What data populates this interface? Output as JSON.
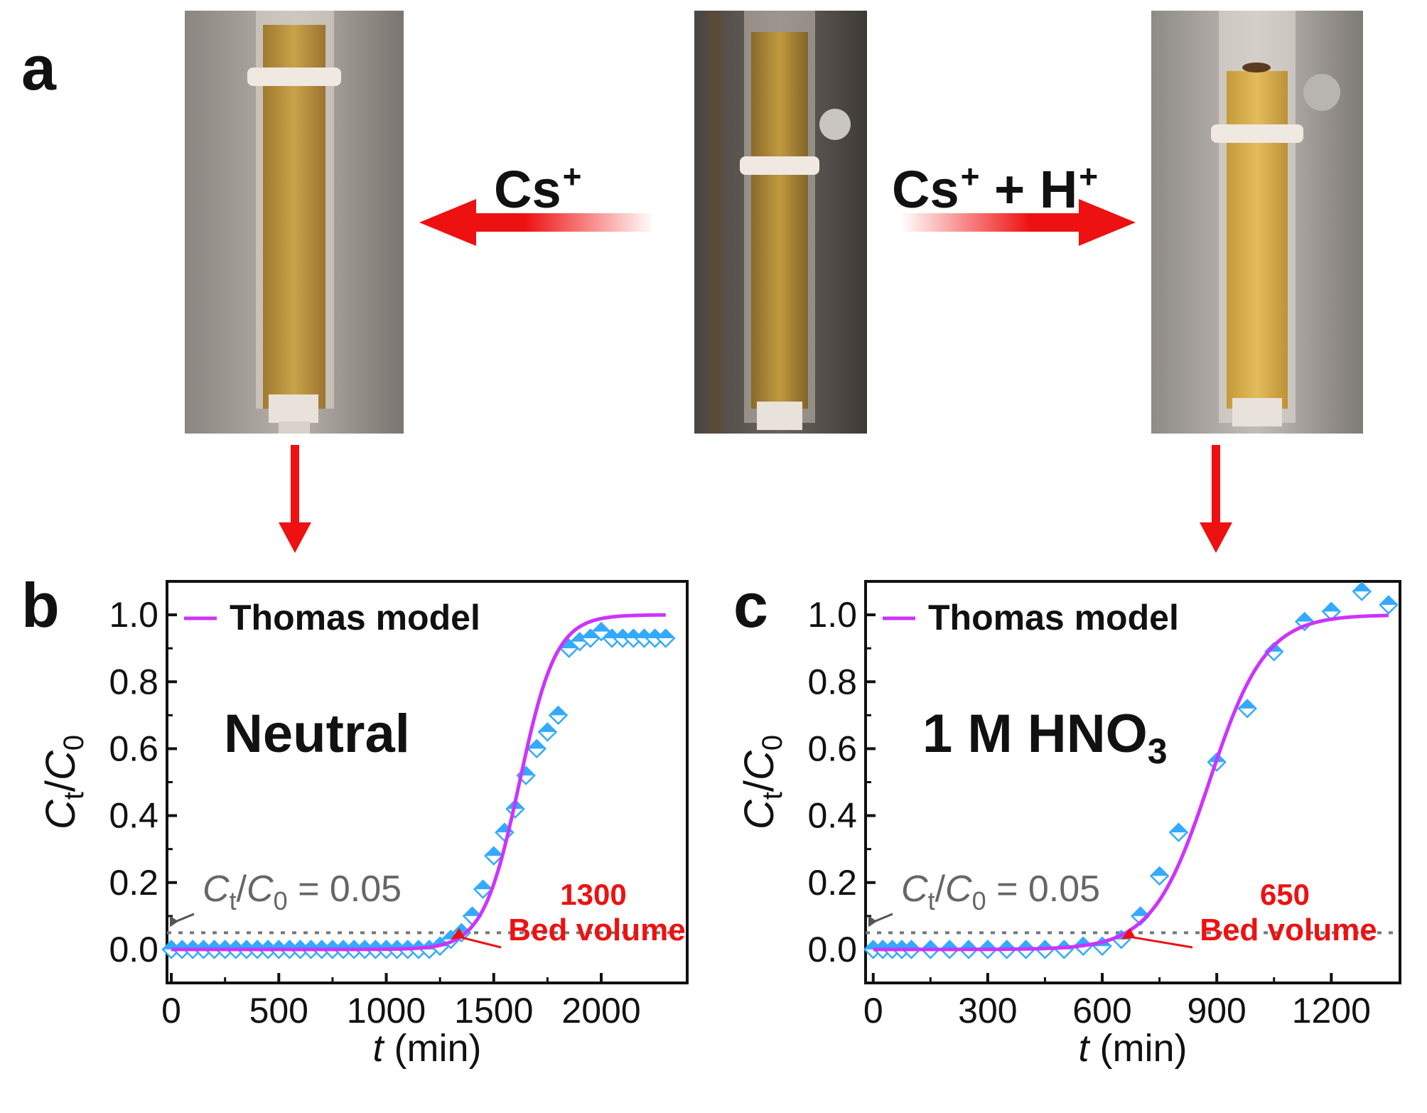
{
  "panels": {
    "a": "a",
    "b": "b",
    "c": "c"
  },
  "arrows": {
    "left_label": "Cs",
    "left_sup": "+",
    "right_label_1": "Cs",
    "right_sup_1": "+",
    "right_mid": " + H",
    "right_sup_2": "+"
  },
  "colors": {
    "arrow": "#ee1111",
    "model": "#cc33ff",
    "points": "#33aaff",
    "threshold": "#777777",
    "annotation": "#ee1111",
    "sand": "#c9a24a"
  },
  "chart_data": [
    {
      "type": "scatter",
      "condition_label": "Neutral",
      "legend": "Thomas model",
      "xlabel": "t (min)",
      "ylabel": "Ct/C0",
      "xlim": [
        -20,
        2400
      ],
      "ylim": [
        -0.1,
        1.1
      ],
      "xticks": [
        0,
        500,
        1000,
        1500,
        2000
      ],
      "yticks": [
        0.0,
        0.2,
        0.4,
        0.6,
        0.8,
        1.0
      ],
      "threshold": {
        "value": 0.05,
        "label_prefix": "C",
        "label_sub1": "t",
        "label_mid": "/C",
        "label_sub2": "0",
        "label_suffix": " = 0.05"
      },
      "annotation": {
        "number": "1300",
        "text": "Bed volume",
        "x": 1300,
        "y": 0.03
      },
      "model_fit": {
        "name": "Thomas model",
        "midpoint": 1620,
        "slope": 0.0118,
        "x_range": [
          0,
          2300
        ]
      },
      "points": [
        [
          0,
          0.0
        ],
        [
          50,
          0.0
        ],
        [
          100,
          0.0
        ],
        [
          150,
          0.0
        ],
        [
          200,
          0.0
        ],
        [
          250,
          0.0
        ],
        [
          300,
          0.0
        ],
        [
          350,
          0.0
        ],
        [
          400,
          0.0
        ],
        [
          450,
          0.0
        ],
        [
          500,
          0.0
        ],
        [
          550,
          0.0
        ],
        [
          600,
          0.0
        ],
        [
          650,
          0.0
        ],
        [
          700,
          0.0
        ],
        [
          750,
          0.0
        ],
        [
          800,
          0.0
        ],
        [
          850,
          0.0
        ],
        [
          900,
          0.0
        ],
        [
          950,
          0.0
        ],
        [
          1000,
          0.0
        ],
        [
          1050,
          0.0
        ],
        [
          1100,
          0.0
        ],
        [
          1150,
          0.0
        ],
        [
          1200,
          0.0
        ],
        [
          1250,
          0.01
        ],
        [
          1300,
          0.03
        ],
        [
          1350,
          0.05
        ],
        [
          1400,
          0.1
        ],
        [
          1450,
          0.18
        ],
        [
          1500,
          0.28
        ],
        [
          1550,
          0.35
        ],
        [
          1600,
          0.42
        ],
        [
          1650,
          0.52
        ],
        [
          1700,
          0.6
        ],
        [
          1750,
          0.65
        ],
        [
          1800,
          0.7
        ],
        [
          1850,
          0.9
        ],
        [
          1900,
          0.92
        ],
        [
          1950,
          0.93
        ],
        [
          2000,
          0.95
        ],
        [
          2050,
          0.93
        ],
        [
          2100,
          0.93
        ],
        [
          2150,
          0.93
        ],
        [
          2200,
          0.93
        ],
        [
          2250,
          0.93
        ],
        [
          2300,
          0.93
        ]
      ]
    },
    {
      "type": "scatter",
      "condition_label": "1 M HNO",
      "condition_sub": "3",
      "legend": "Thomas model",
      "xlabel": "t (min)",
      "ylabel": "Ct/C0",
      "xlim": [
        -20,
        1380
      ],
      "ylim": [
        -0.1,
        1.1
      ],
      "xticks": [
        0,
        300,
        600,
        900,
        1200
      ],
      "yticks": [
        0.0,
        0.2,
        0.4,
        0.6,
        0.8,
        1.0
      ],
      "threshold": {
        "value": 0.05,
        "label_prefix": "C",
        "label_sub1": "t",
        "label_mid": "/C",
        "label_sub2": "0",
        "label_suffix": " = 0.05"
      },
      "annotation": {
        "number": "650",
        "text": "Bed volume",
        "x": 650,
        "y": 0.03
      },
      "model_fit": {
        "name": "Thomas model",
        "midpoint": 880,
        "slope": 0.0135,
        "x_range": [
          0,
          1350
        ]
      },
      "points": [
        [
          0,
          0.0
        ],
        [
          25,
          0.0
        ],
        [
          50,
          0.0
        ],
        [
          75,
          0.0
        ],
        [
          100,
          0.0
        ],
        [
          150,
          0.0
        ],
        [
          200,
          0.0
        ],
        [
          250,
          0.0
        ],
        [
          300,
          0.0
        ],
        [
          350,
          0.0
        ],
        [
          400,
          0.0
        ],
        [
          450,
          0.0
        ],
        [
          500,
          0.0
        ],
        [
          550,
          0.01
        ],
        [
          600,
          0.01
        ],
        [
          650,
          0.03
        ],
        [
          700,
          0.1
        ],
        [
          750,
          0.22
        ],
        [
          800,
          0.35
        ],
        [
          900,
          0.56
        ],
        [
          980,
          0.72
        ],
        [
          1050,
          0.89
        ],
        [
          1130,
          0.98
        ],
        [
          1200,
          1.01
        ],
        [
          1280,
          1.07
        ],
        [
          1350,
          1.03
        ]
      ]
    }
  ]
}
